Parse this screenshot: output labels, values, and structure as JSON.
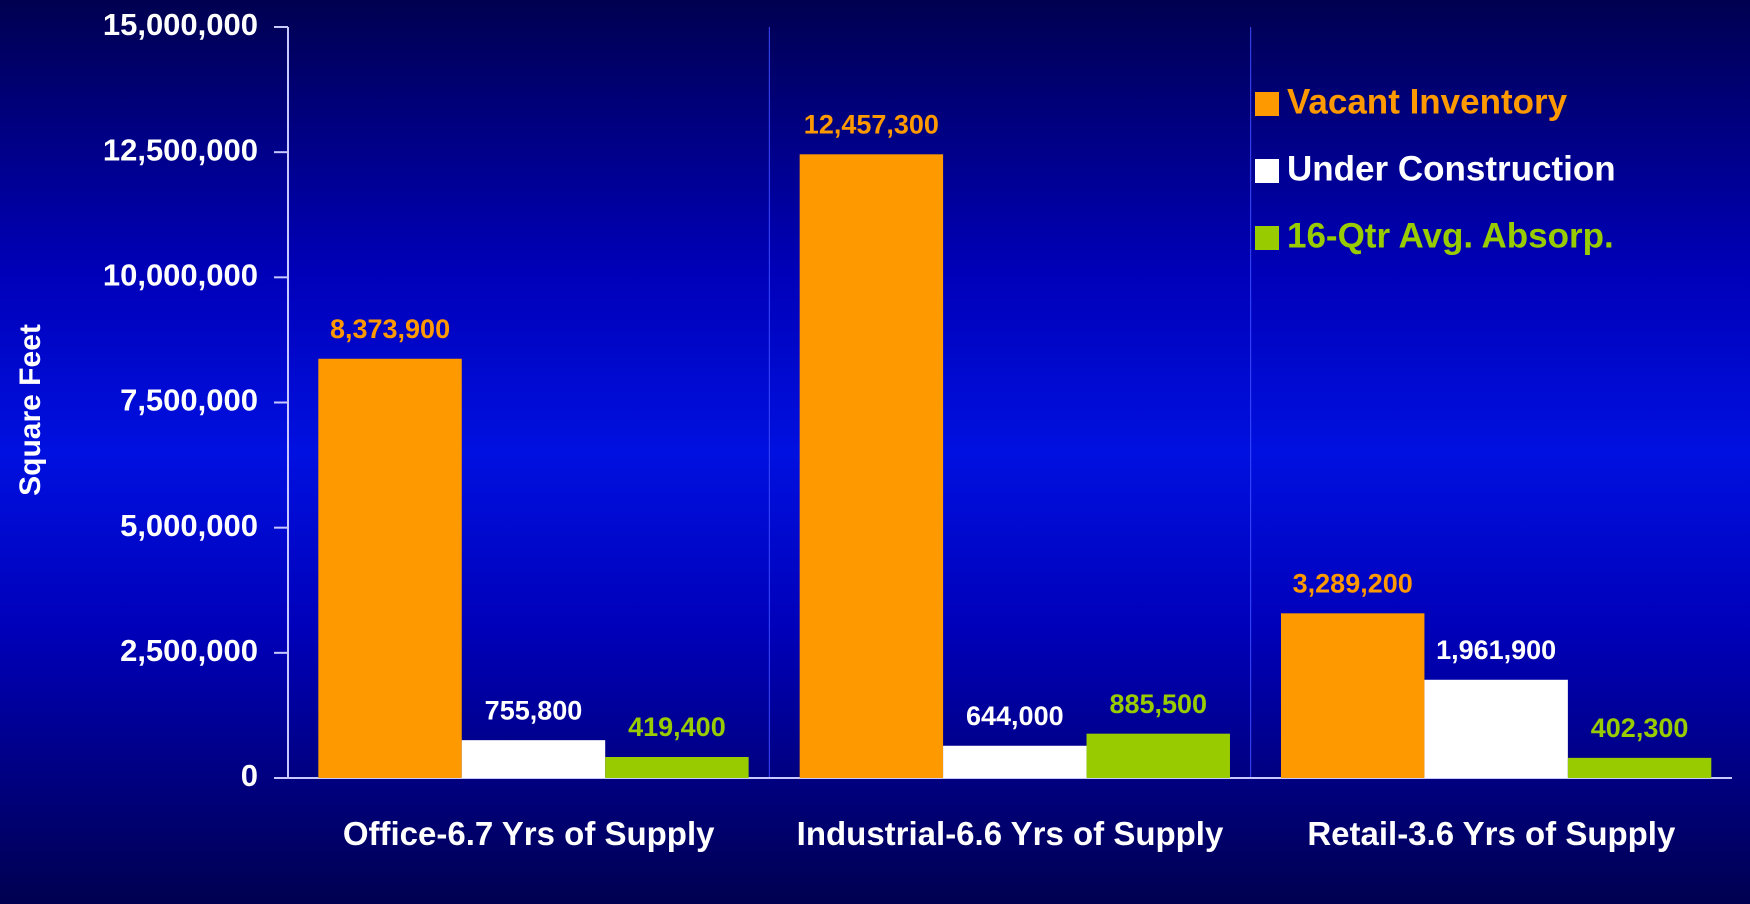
{
  "chart_data": {
    "type": "bar",
    "y_label": "Square Feet",
    "categories": [
      "Office-6.7 Yrs of Supply",
      "Industrial-6.6 Yrs of Supply",
      "Retail-3.6 Yrs of Supply"
    ],
    "series": [
      {
        "name": "Vacant Inventory",
        "color": "#ff9900",
        "values": [
          8373900,
          12457300,
          3289200
        ],
        "value_labels": [
          "8,373,900",
          "12,457,300",
          "3,289,200"
        ]
      },
      {
        "name": "Under Construction",
        "color": "#ffffff",
        "values": [
          755800,
          644000,
          1961900
        ],
        "value_labels": [
          "755,800",
          "644,000",
          "1,961,900"
        ]
      },
      {
        "name": "16-Qtr Avg. Absorp.",
        "color": "#99cc00",
        "values": [
          419400,
          885500,
          402300
        ],
        "value_labels": [
          "419,400",
          "885,500",
          "402,300"
        ]
      }
    ],
    "ylim": [
      0,
      15000000
    ],
    "yticks": [
      0,
      {
        "value": 2500000,
        "label": "2,500,000"
      },
      {
        "value": 5000000,
        "label": "5,000,000"
      },
      {
        "value": 7500000,
        "label": "7,500,000"
      },
      {
        "value": 10000000,
        "label": "10,000,000"
      },
      {
        "value": 12500000,
        "label": "12,500,000"
      },
      {
        "value": 15000000,
        "label": "15,000,000"
      }
    ],
    "legend": "top-right"
  }
}
